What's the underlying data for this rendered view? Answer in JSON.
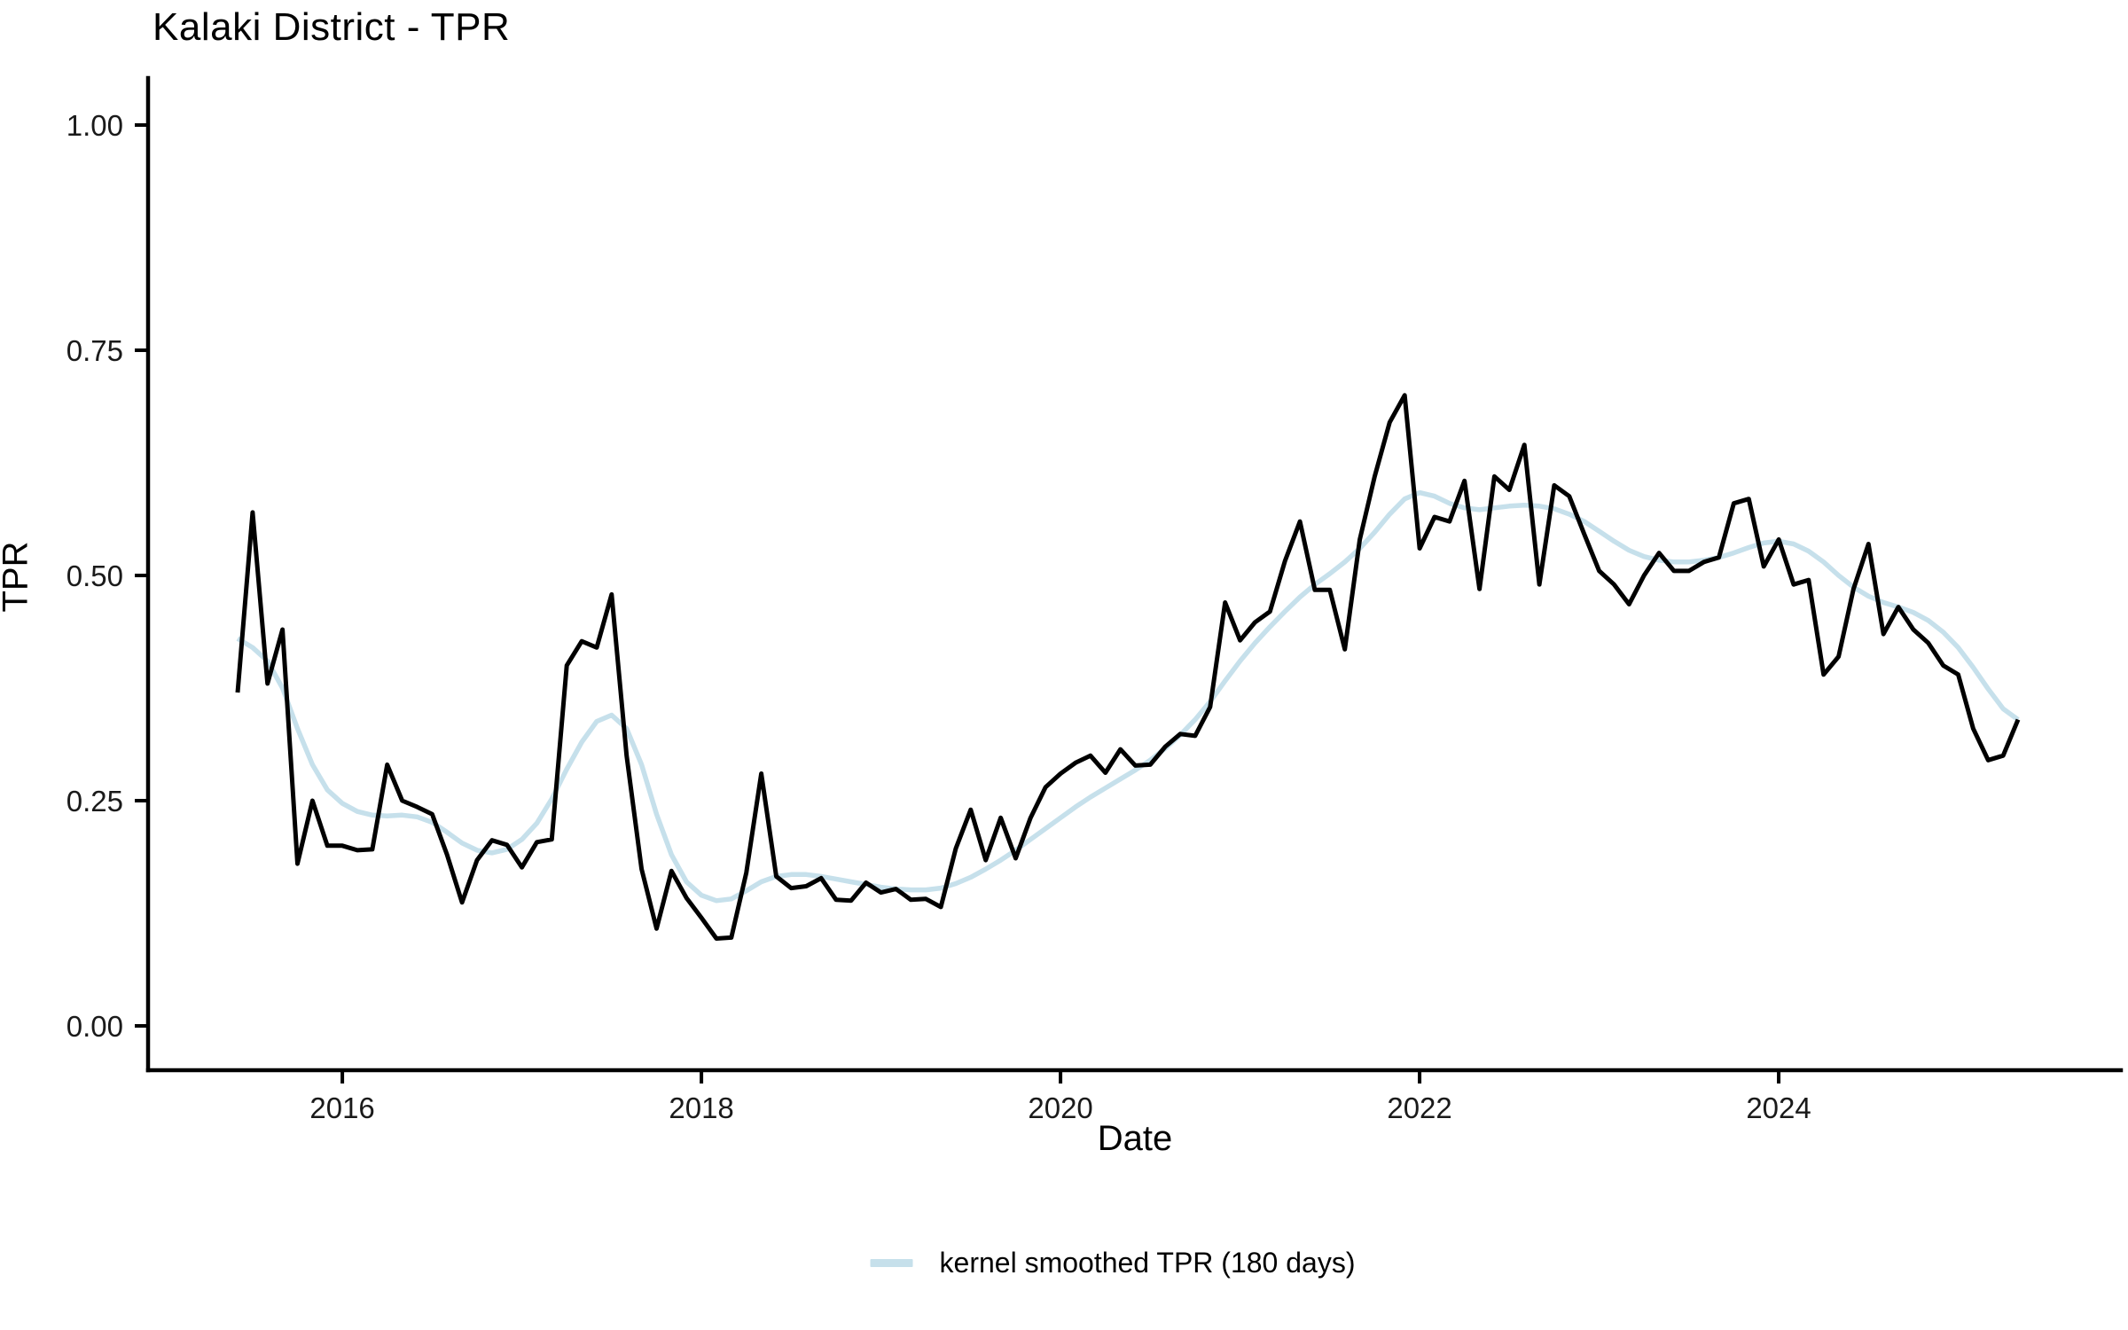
{
  "title": "Kalaki District - TPR",
  "axes": {
    "x": {
      "label": "Date",
      "ticks": [
        {
          "label": "2016",
          "value": 2016
        },
        {
          "label": "2018",
          "value": 2018
        },
        {
          "label": "2020",
          "value": 2020
        },
        {
          "label": "2022",
          "value": 2022
        },
        {
          "label": "2024",
          "value": 2024
        }
      ]
    },
    "y": {
      "label": "TPR",
      "ticks": [
        {
          "label": "0.00",
          "value": 0.0
        },
        {
          "label": "0.25",
          "value": 0.25
        },
        {
          "label": "0.50",
          "value": 0.5
        },
        {
          "label": "0.75",
          "value": 0.75
        },
        {
          "label": "1.00",
          "value": 1.0
        }
      ]
    }
  },
  "legend": {
    "items": [
      {
        "label": "kernel smoothed TPR (180 days)",
        "color": "#C6E0EB"
      }
    ]
  },
  "chart_data": {
    "type": "line",
    "title": "Kalaki District - TPR",
    "xlabel": "Date",
    "ylabel": "TPR",
    "grid": false,
    "legend_position": "bottom",
    "x_unit": "month",
    "x_start_year": 2015.4167,
    "x_step_years": 0.0833333,
    "xlim": [
      2014.918,
      2025.906
    ],
    "ylim": [
      -0.0492,
      1.0522
    ],
    "y_axis_range_shown": [
      0.0,
      1.0
    ],
    "series": [
      {
        "id": "tpr",
        "name": "TPR (monthly)",
        "color": "#000000",
        "width": 5,
        "z": 1,
        "values": [
          0.37,
          0.57,
          0.38,
          0.44,
          0.18,
          0.25,
          0.2,
          0.2,
          0.195,
          0.196,
          0.29,
          0.25,
          0.243,
          0.235,
          0.19,
          0.137,
          0.184,
          0.206,
          0.201,
          0.176,
          0.204,
          0.207,
          0.4,
          0.427,
          0.42,
          0.479,
          0.3,
          0.174,
          0.108,
          0.172,
          0.142,
          0.12,
          0.097,
          0.098,
          0.17,
          0.28,
          0.166,
          0.153,
          0.155,
          0.164,
          0.14,
          0.139,
          0.159,
          0.148,
          0.152,
          0.14,
          0.141,
          0.132,
          0.197,
          0.24,
          0.184,
          0.231,
          0.186,
          0.231,
          0.265,
          0.28,
          0.292,
          0.3,
          0.281,
          0.307,
          0.289,
          0.29,
          0.31,
          0.324,
          0.322,
          0.354,
          0.47,
          0.428,
          0.448,
          0.46,
          0.516,
          0.56,
          0.484,
          0.484,
          0.418,
          0.54,
          0.61,
          0.67,
          0.7,
          0.53,
          0.565,
          0.56,
          0.605,
          0.485,
          0.61,
          0.595,
          0.645,
          0.49,
          0.6,
          0.588,
          0.546,
          0.505,
          0.49,
          0.468,
          0.5,
          0.525,
          0.505,
          0.505,
          0.515,
          0.52,
          0.58,
          0.585,
          0.51,
          0.54,
          0.49,
          0.495,
          0.39,
          0.41,
          0.485,
          0.535,
          0.435,
          0.465,
          0.44,
          0.425,
          0.4,
          0.39,
          0.33,
          0.295,
          0.3,
          0.34
        ]
      },
      {
        "id": "smoothed",
        "name": "kernel smoothed TPR (180 days)",
        "color": "#C6E0EB",
        "width": 5.5,
        "z": 0,
        "values": [
          0.43,
          0.42,
          0.405,
          0.375,
          0.33,
          0.29,
          0.262,
          0.247,
          0.238,
          0.234,
          0.233,
          0.234,
          0.232,
          0.226,
          0.215,
          0.203,
          0.195,
          0.192,
          0.196,
          0.207,
          0.225,
          0.252,
          0.285,
          0.315,
          0.338,
          0.345,
          0.33,
          0.29,
          0.235,
          0.19,
          0.16,
          0.145,
          0.139,
          0.141,
          0.15,
          0.16,
          0.166,
          0.168,
          0.168,
          0.166,
          0.163,
          0.16,
          0.157,
          0.154,
          0.152,
          0.151,
          0.151,
          0.153,
          0.158,
          0.165,
          0.174,
          0.184,
          0.195,
          0.207,
          0.219,
          0.231,
          0.243,
          0.254,
          0.264,
          0.274,
          0.284,
          0.295,
          0.308,
          0.323,
          0.34,
          0.36,
          0.383,
          0.405,
          0.425,
          0.443,
          0.46,
          0.476,
          0.49,
          0.502,
          0.515,
          0.53,
          0.548,
          0.568,
          0.585,
          0.592,
          0.588,
          0.58,
          0.575,
          0.573,
          0.575,
          0.577,
          0.578,
          0.577,
          0.574,
          0.568,
          0.56,
          0.549,
          0.538,
          0.528,
          0.521,
          0.517,
          0.515,
          0.515,
          0.517,
          0.52,
          0.525,
          0.531,
          0.536,
          0.538,
          0.535,
          0.527,
          0.515,
          0.5,
          0.487,
          0.477,
          0.47,
          0.465,
          0.459,
          0.45,
          0.437,
          0.42,
          0.398,
          0.374,
          0.352,
          0.34
        ]
      }
    ]
  }
}
